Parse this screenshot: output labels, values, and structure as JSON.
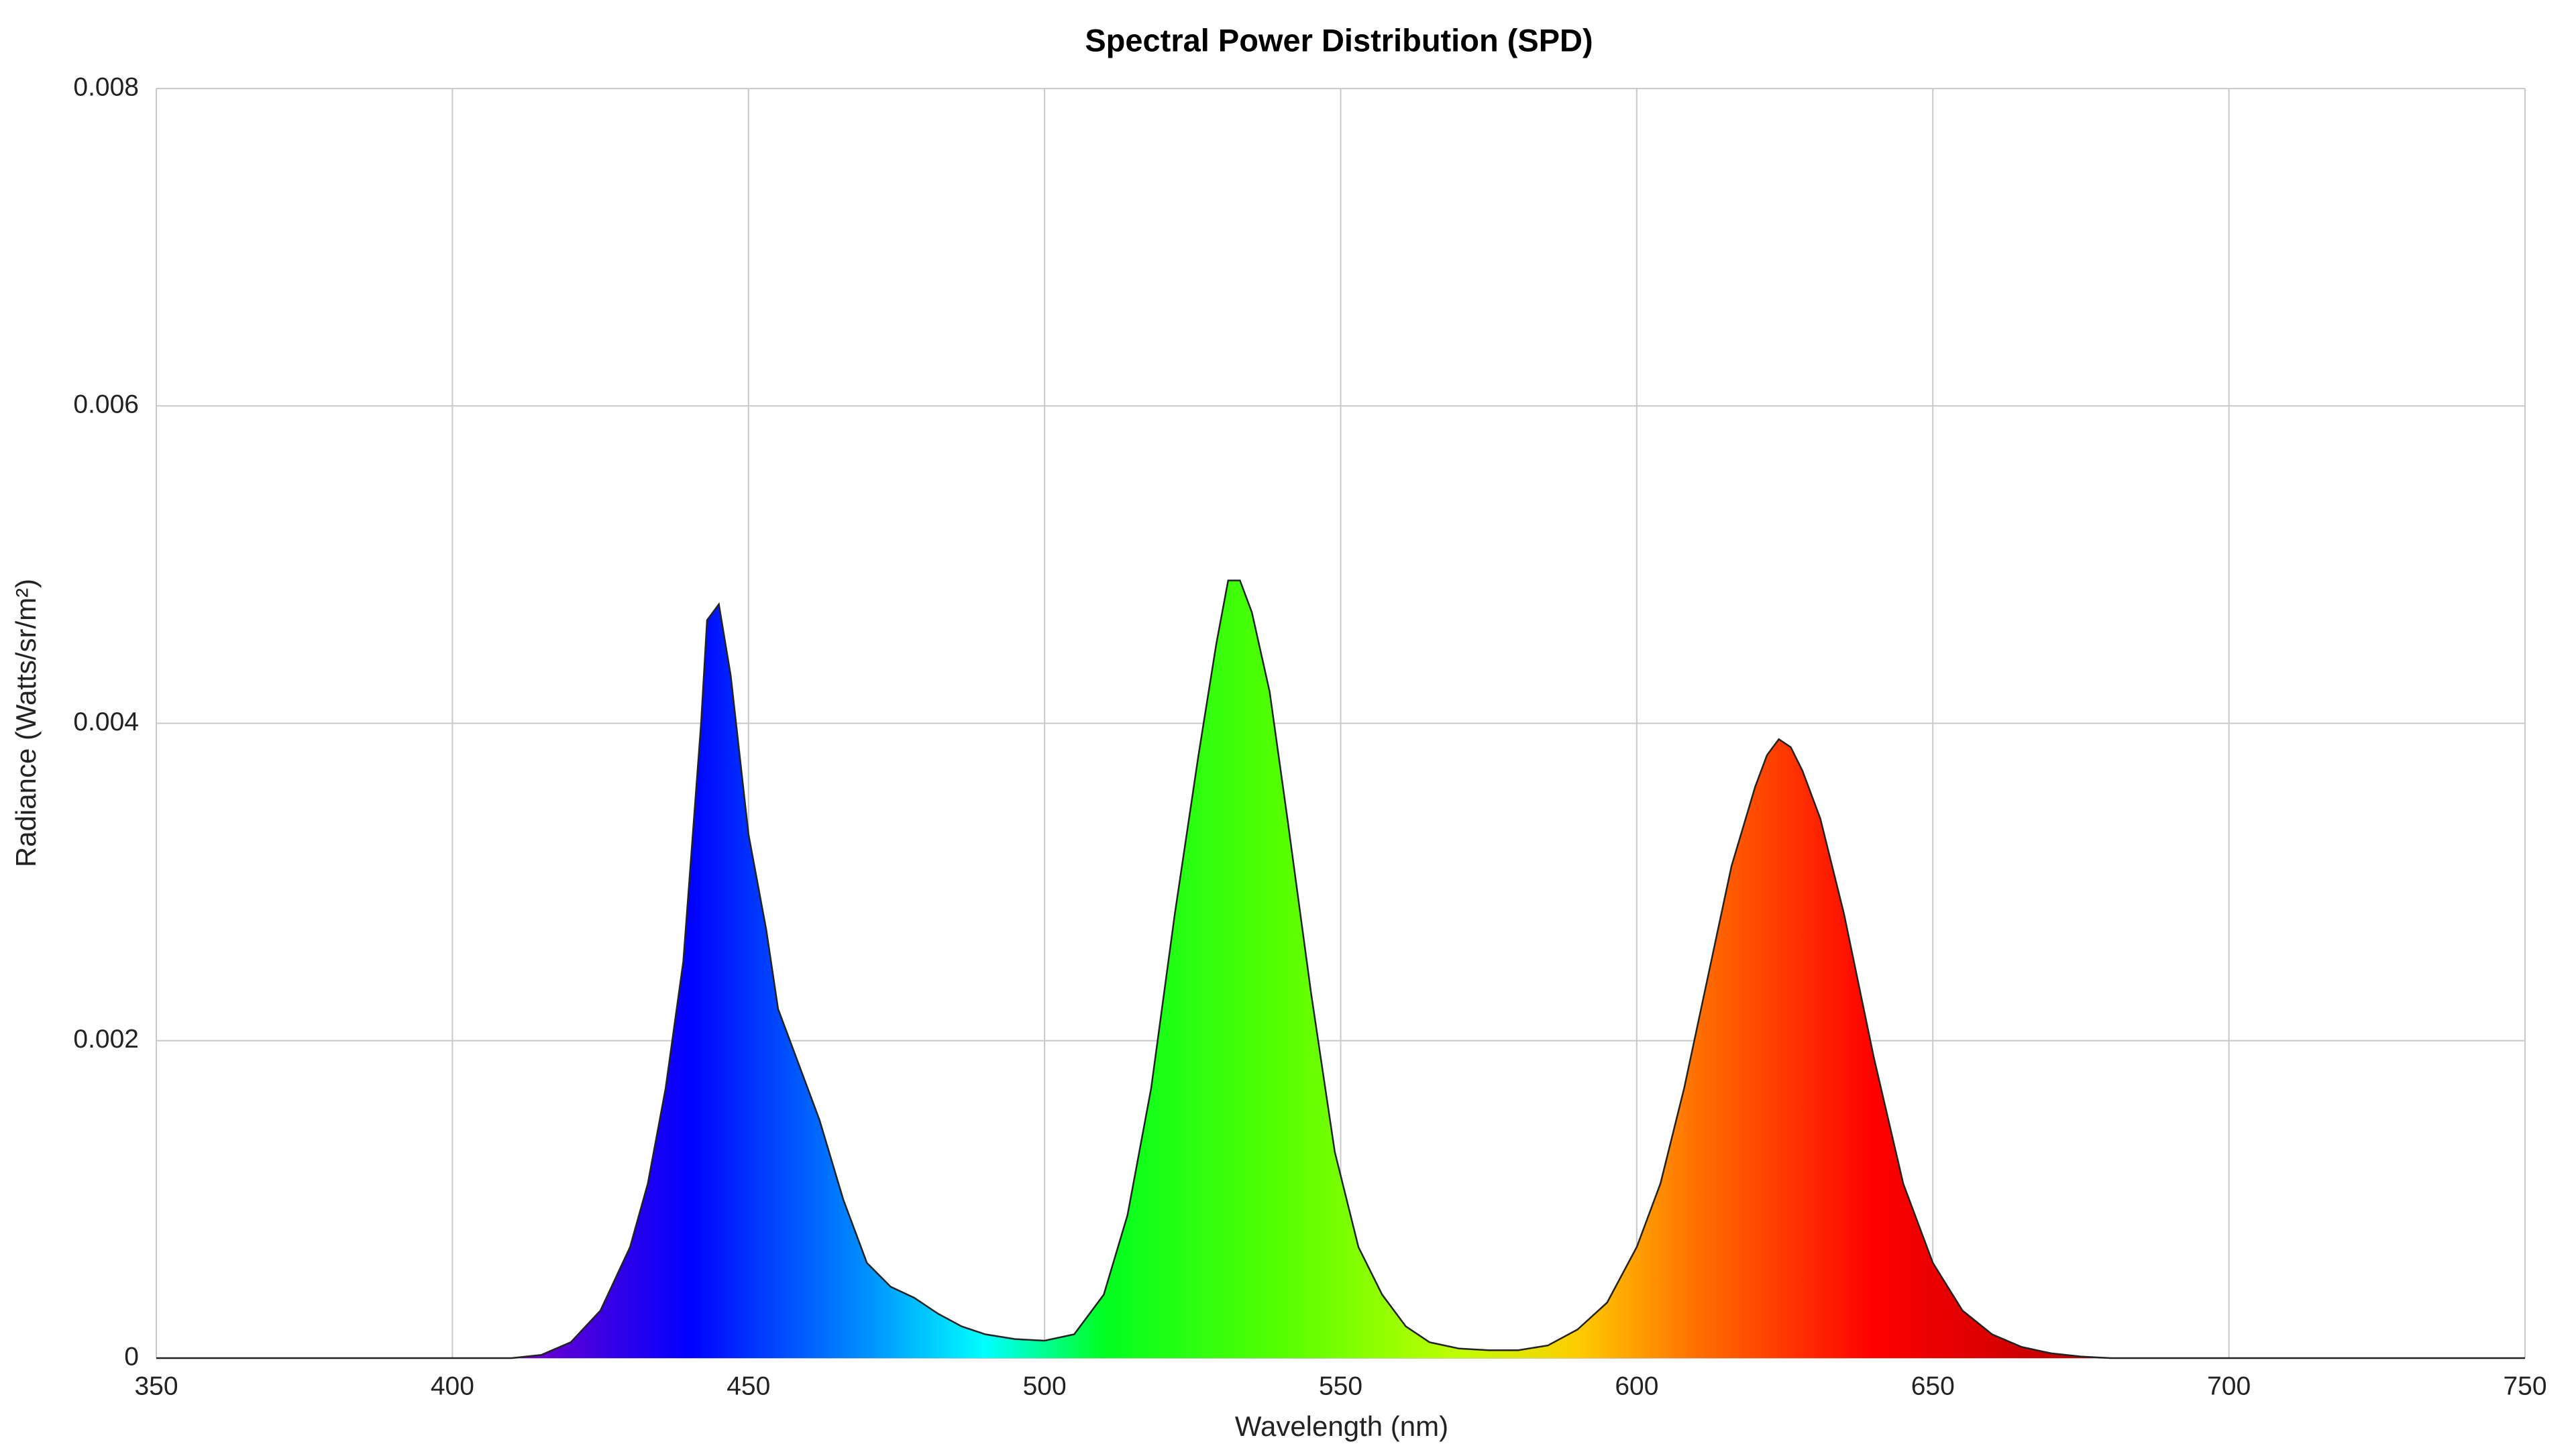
{
  "chart_data": {
    "type": "area",
    "title": "Spectral Power Distribution (SPD)",
    "x_label": "Wavelength (nm)",
    "y_label": "Radiance (Watts/sr/m²)",
    "x": [
      350,
      360,
      370,
      380,
      390,
      400,
      410,
      415,
      420,
      425,
      430,
      433,
      436,
      439,
      442,
      443,
      445,
      447,
      450,
      453,
      455,
      458,
      462,
      466,
      470,
      474,
      478,
      482,
      486,
      490,
      495,
      500,
      505,
      510,
      514,
      518,
      522,
      526,
      529,
      531,
      533,
      535,
      538,
      541,
      545,
      549,
      553,
      557,
      561,
      565,
      570,
      575,
      580,
      585,
      590,
      595,
      600,
      604,
      608,
      612,
      616,
      620,
      622,
      624,
      626,
      628,
      631,
      635,
      640,
      645,
      650,
      655,
      660,
      665,
      670,
      675,
      680,
      690,
      700,
      710,
      720,
      730,
      740,
      750
    ],
    "values": [
      0,
      0,
      0,
      0,
      0,
      0,
      0,
      2e-05,
      0.0001,
      0.0003,
      0.0007,
      0.0011,
      0.0017,
      0.0025,
      0.004,
      0.00465,
      0.00475,
      0.0043,
      0.0033,
      0.0027,
      0.0022,
      0.0019,
      0.0015,
      0.001,
      0.0006,
      0.00045,
      0.00038,
      0.00028,
      0.0002,
      0.00015,
      0.00012,
      0.00011,
      0.00015,
      0.0004,
      0.0009,
      0.0017,
      0.0028,
      0.0038,
      0.0045,
      0.0049,
      0.0049,
      0.0047,
      0.0042,
      0.0034,
      0.0023,
      0.0013,
      0.0007,
      0.0004,
      0.0002,
      0.0001,
      6e-05,
      5e-05,
      5e-05,
      8e-05,
      0.00018,
      0.00035,
      0.0007,
      0.0011,
      0.0017,
      0.0024,
      0.0031,
      0.0036,
      0.0038,
      0.0039,
      0.00385,
      0.0037,
      0.0034,
      0.0028,
      0.0019,
      0.0011,
      0.0006,
      0.0003,
      0.00015,
      7e-05,
      3e-05,
      1e-05,
      0,
      0,
      0,
      0,
      0,
      0,
      0,
      0
    ],
    "xlim": [
      350,
      750
    ],
    "xticks": [
      350,
      400,
      450,
      500,
      550,
      600,
      650,
      700,
      750
    ],
    "ylim": [
      0,
      0.008
    ],
    "yticks": [
      0,
      0.002,
      0.004,
      0.006,
      0.008
    ],
    "grid": true
  }
}
